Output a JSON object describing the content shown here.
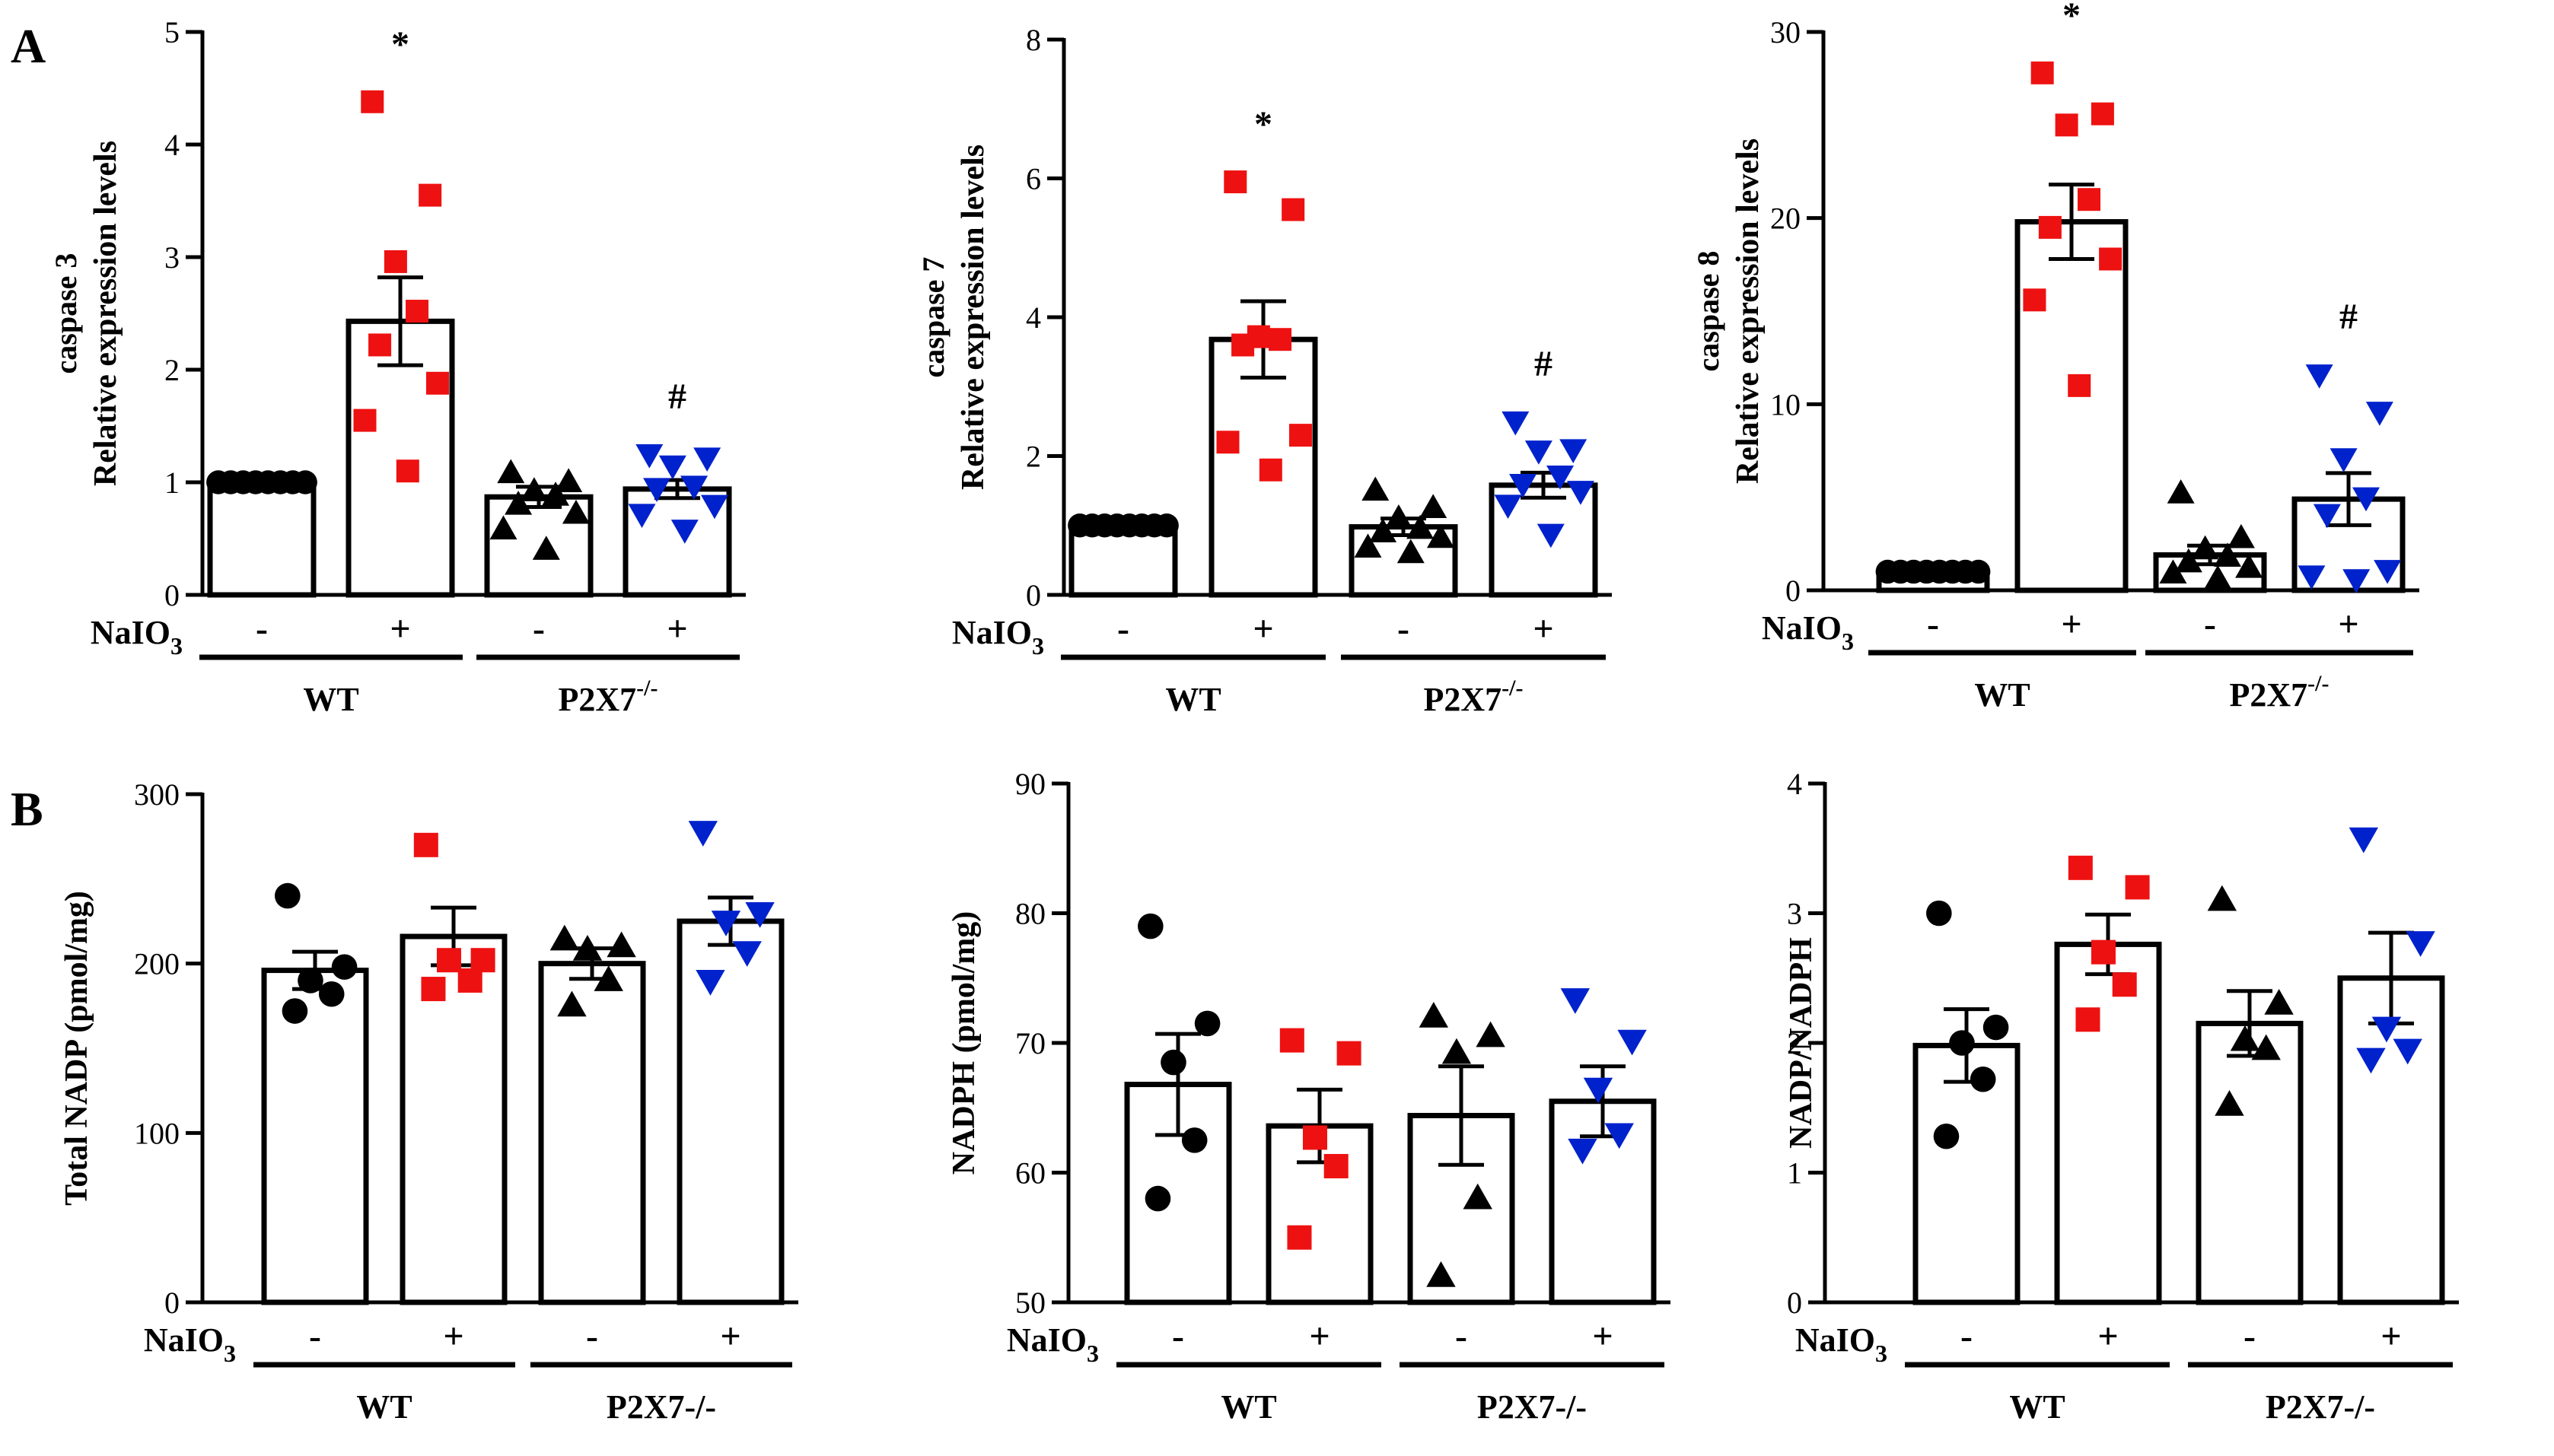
{
  "panel_labels": [
    "A",
    "B"
  ],
  "treatment_label": "NaIO",
  "treatment_subscript": "3",
  "chart_data": [
    {
      "type": "bar",
      "panel": "A",
      "title": "",
      "ylabel": "Relative expression levels",
      "ylabel_top": "caspase 3",
      "ylim": [
        0,
        5
      ],
      "yticks": [
        0,
        1,
        2,
        3,
        4,
        5
      ],
      "categories": [
        "-",
        "+",
        "-",
        "+"
      ],
      "groups": [
        {
          "label": "WT",
          "sup": ""
        },
        {
          "label": "P2X7",
          "sup": "-/-"
        }
      ],
      "values": [
        1.0,
        2.43,
        0.87,
        0.94
      ],
      "sem": [
        0.0,
        0.39,
        0.09,
        0.08
      ],
      "annotations": [
        "",
        "*",
        "",
        "#"
      ],
      "series": [
        {
          "name": "WT -",
          "marker": "circle",
          "color": "#000000",
          "points": [
            1,
            1,
            1,
            1,
            1,
            1,
            1,
            1
          ]
        },
        {
          "name": "WT +",
          "marker": "square",
          "color": "#ee1111",
          "points": [
            4.38,
            3.55,
            2.96,
            2.52,
            2.22,
            1.88,
            1.55,
            1.1
          ]
        },
        {
          "name": "P2X7 -",
          "marker": "triangle-up",
          "color": "#000000",
          "points": [
            1.08,
            1.0,
            0.92,
            0.88,
            0.8,
            0.72,
            0.58,
            0.4
          ]
        },
        {
          "name": "P2X7 +",
          "marker": "triangle-down",
          "color": "#0022cc",
          "points": [
            1.25,
            1.22,
            1.15,
            0.97,
            0.95,
            0.8,
            0.72,
            0.58
          ]
        }
      ]
    },
    {
      "type": "bar",
      "panel": "A",
      "title": "",
      "ylabel": "Relative expression levels",
      "ylabel_top": "caspase 7",
      "ylim": [
        0,
        8
      ],
      "yticks": [
        0,
        2,
        4,
        6,
        8
      ],
      "categories": [
        "-",
        "+",
        "-",
        "+"
      ],
      "groups": [
        {
          "label": "WT",
          "sup": ""
        },
        {
          "label": "P2X7",
          "sup": "-/-"
        }
      ],
      "values": [
        1.0,
        3.68,
        0.98,
        1.58
      ],
      "sem": [
        0.0,
        0.55,
        0.12,
        0.18
      ],
      "annotations": [
        "",
        "*",
        "",
        "#"
      ],
      "series": [
        {
          "name": "WT -",
          "marker": "circle",
          "color": "#000000",
          "points": [
            1,
            1,
            1,
            1,
            1,
            1,
            1,
            1
          ]
        },
        {
          "name": "WT +",
          "marker": "square",
          "color": "#ee1111",
          "points": [
            5.95,
            5.55,
            3.72,
            3.68,
            3.6,
            2.3,
            2.2,
            1.8
          ]
        },
        {
          "name": "P2X7 -",
          "marker": "triangle-up",
          "color": "#000000",
          "points": [
            1.5,
            1.25,
            1.1,
            0.95,
            0.9,
            0.82,
            0.68,
            0.6
          ]
        },
        {
          "name": "P2X7 +",
          "marker": "triangle-down",
          "color": "#0022cc",
          "points": [
            2.5,
            2.1,
            2.08,
            1.72,
            1.6,
            1.5,
            1.3,
            0.88
          ]
        }
      ]
    },
    {
      "type": "bar",
      "panel": "A",
      "title": "",
      "ylabel": "Relative expression levels",
      "ylabel_top": "caspase 8",
      "ylim": [
        0,
        30
      ],
      "yticks": [
        0,
        10,
        20,
        30
      ],
      "categories": [
        "-",
        "+",
        "-",
        "+"
      ],
      "groups": [
        {
          "label": "WT",
          "sup": ""
        },
        {
          "label": "P2X7",
          "sup": "-/-"
        }
      ],
      "values": [
        1.0,
        19.8,
        1.9,
        4.9
      ],
      "sem": [
        0.0,
        2.0,
        0.5,
        1.4
      ],
      "annotations": [
        "",
        "*",
        "",
        "#"
      ],
      "series": [
        {
          "name": "WT -",
          "marker": "circle",
          "color": "#000000",
          "points": [
            1,
            1,
            1,
            1,
            1,
            1,
            1,
            1
          ]
        },
        {
          "name": "WT +",
          "marker": "square",
          "color": "#ee1111",
          "points": [
            27.8,
            25.6,
            25.0,
            21.0,
            19.5,
            17.8,
            15.6,
            11.0
          ]
        },
        {
          "name": "P2X7 -",
          "marker": "triangle-up",
          "color": "#000000",
          "points": [
            5.2,
            2.8,
            2.2,
            1.8,
            1.5,
            1.2,
            0.9,
            0.6
          ]
        },
        {
          "name": "P2X7 +",
          "marker": "triangle-down",
          "color": "#0022cc",
          "points": [
            11.6,
            9.6,
            7.1,
            5.0,
            4.1,
            1.1,
            0.8,
            0.6
          ]
        }
      ]
    },
    {
      "type": "bar",
      "panel": "B",
      "title": "",
      "ylabel": "Total NADP (pmol/mg)",
      "ylabel_top": "",
      "ylim": [
        0,
        300
      ],
      "yticks": [
        0,
        100,
        200,
        300
      ],
      "categories": [
        "-",
        "+",
        "-",
        "+"
      ],
      "groups": [
        {
          "label": "WT",
          "sup": ""
        },
        {
          "label": "P2X7-/-",
          "sup": ""
        }
      ],
      "values": [
        196,
        216,
        200,
        225
      ],
      "sem": [
        11,
        17,
        9,
        14
      ],
      "annotations": [
        "",
        "",
        "",
        ""
      ],
      "series": [
        {
          "name": "WT -",
          "marker": "circle",
          "color": "#000000",
          "points": [
            240,
            198,
            190,
            182,
            172
          ]
        },
        {
          "name": "WT +",
          "marker": "square",
          "color": "#ee1111",
          "points": [
            270,
            202,
            202,
            190,
            185
          ]
        },
        {
          "name": "P2X7 -",
          "marker": "triangle-up",
          "color": "#000000",
          "points": [
            214,
            210,
            208,
            190,
            175
          ]
        },
        {
          "name": "P2X7 +",
          "marker": "triangle-down",
          "color": "#0022cc",
          "points": [
            278,
            230,
            225,
            207,
            190
          ]
        }
      ]
    },
    {
      "type": "bar",
      "panel": "B",
      "title": "",
      "ylabel": "NADPH (pmol/mg)",
      "ylabel_top": "",
      "ylim": [
        50,
        90
      ],
      "yticks": [
        50,
        60,
        70,
        80,
        90
      ],
      "categories": [
        "-",
        "+",
        "-",
        "+"
      ],
      "groups": [
        {
          "label": "WT",
          "sup": ""
        },
        {
          "label": "P2X7-/-",
          "sup": ""
        }
      ],
      "values": [
        66.8,
        63.6,
        64.4,
        65.5
      ],
      "sem": [
        3.9,
        2.8,
        3.8,
        2.7
      ],
      "annotations": [
        "",
        "",
        "",
        ""
      ],
      "series": [
        {
          "name": "WT -",
          "marker": "circle",
          "color": "#000000",
          "points": [
            79,
            71.5,
            68.5,
            62.5,
            58
          ]
        },
        {
          "name": "WT +",
          "marker": "square",
          "color": "#ee1111",
          "points": [
            70.2,
            69.2,
            62.7,
            60.5,
            55
          ]
        },
        {
          "name": "P2X7 -",
          "marker": "triangle-up",
          "color": "#000000",
          "points": [
            72,
            70.5,
            69.2,
            58,
            52
          ]
        },
        {
          "name": "P2X7 +",
          "marker": "triangle-down",
          "color": "#0022cc",
          "points": [
            73.4,
            70.2,
            66.5,
            63,
            61.8
          ]
        }
      ]
    },
    {
      "type": "bar",
      "panel": "B",
      "title": "",
      "ylabel": "NADP/NADPH",
      "ylabel_top": "",
      "ylim": [
        0,
        4
      ],
      "yticks": [
        0,
        1,
        2,
        3,
        4
      ],
      "categories": [
        "-",
        "+",
        "-",
        "+"
      ],
      "groups": [
        {
          "label": "WT",
          "sup": ""
        },
        {
          "label": "P2X7-/-",
          "sup": ""
        }
      ],
      "values": [
        1.98,
        2.76,
        2.15,
        2.5
      ],
      "sem": [
        0.28,
        0.23,
        0.25,
        0.35
      ],
      "annotations": [
        "",
        "",
        "",
        ""
      ],
      "series": [
        {
          "name": "WT -",
          "marker": "circle",
          "color": "#000000",
          "points": [
            3.0,
            2.12,
            2.0,
            1.72,
            1.28
          ]
        },
        {
          "name": "WT +",
          "marker": "square",
          "color": "#ee1111",
          "points": [
            3.35,
            3.2,
            2.7,
            2.45,
            2.18
          ]
        },
        {
          "name": "P2X7 -",
          "marker": "triangle-up",
          "color": "#000000",
          "points": [
            3.1,
            2.3,
            2.02,
            1.95,
            1.52
          ]
        },
        {
          "name": "P2X7 +",
          "marker": "triangle-down",
          "color": "#0022cc",
          "points": [
            3.58,
            2.78,
            2.12,
            1.95,
            1.88
          ]
        }
      ]
    }
  ]
}
